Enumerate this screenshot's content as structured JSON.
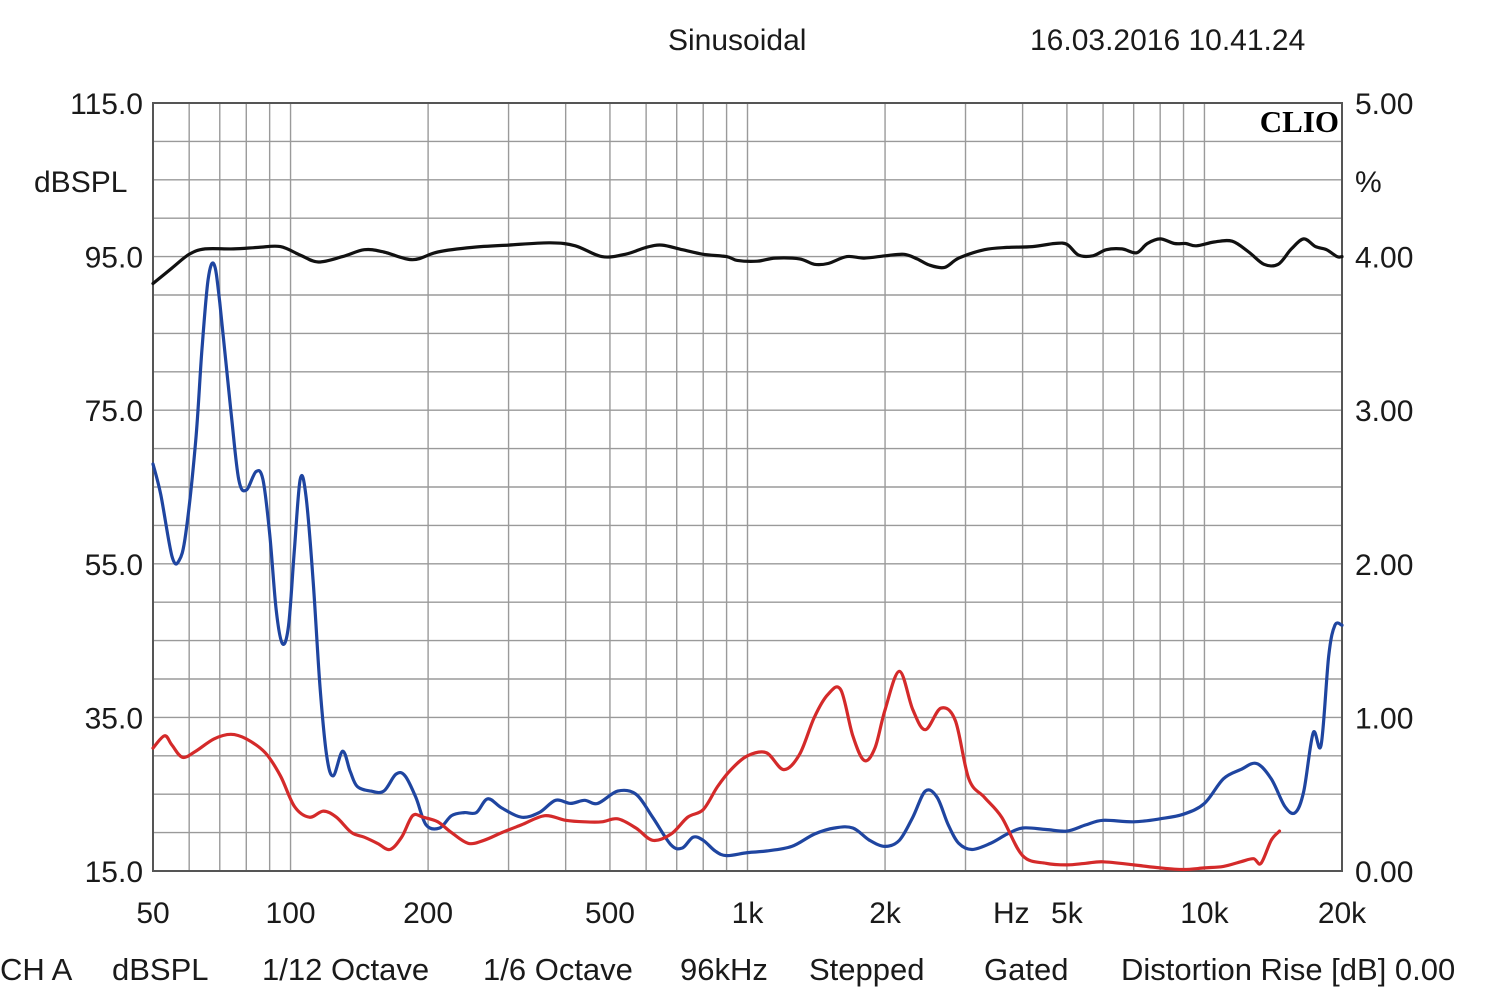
{
  "header": {
    "mode": "Sinusoidal",
    "datetime": "16.03.2016 10.41.24",
    "brand": "CLIO"
  },
  "chart_data": {
    "type": "line",
    "x_scale": "log",
    "xlim": [
      50,
      20000
    ],
    "x_tick_labels": [
      {
        "value": 50,
        "label": "50"
      },
      {
        "value": 100,
        "label": "100"
      },
      {
        "value": 200,
        "label": "200"
      },
      {
        "value": 500,
        "label": "500"
      },
      {
        "value": 1000,
        "label": "1k"
      },
      {
        "value": 2000,
        "label": "2k"
      },
      {
        "value": 5000,
        "label": "5k"
      },
      {
        "value": 10000,
        "label": "10k"
      },
      {
        "value": 20000,
        "label": "20k"
      }
    ],
    "xlabel": "Hz",
    "left_axis": {
      "label": "dBSPL",
      "ylim": [
        15,
        115
      ],
      "ticks": [
        "115.0",
        "95.0",
        "75.0",
        "55.0",
        "35.0",
        "15.0"
      ]
    },
    "right_axis": {
      "label": "%",
      "ylim": [
        0,
        5
      ],
      "ticks": [
        "5.00",
        "4.00",
        "3.00",
        "2.00",
        "1.00",
        "0.00"
      ]
    },
    "grid": true,
    "series": [
      {
        "color": "#111111",
        "axis": "left",
        "points": [
          [
            50,
            91.5
          ],
          [
            55,
            93.5
          ],
          [
            60,
            95.3
          ],
          [
            65,
            96.0
          ],
          [
            75,
            96.0
          ],
          [
            85,
            96.2
          ],
          [
            95,
            96.3
          ],
          [
            105,
            95.2
          ],
          [
            115,
            94.3
          ],
          [
            130,
            95.0
          ],
          [
            145,
            95.9
          ],
          [
            160,
            95.6
          ],
          [
            185,
            94.6
          ],
          [
            210,
            95.6
          ],
          [
            250,
            96.2
          ],
          [
            300,
            96.5
          ],
          [
            370,
            96.8
          ],
          [
            420,
            96.4
          ],
          [
            480,
            95.0
          ],
          [
            540,
            95.3
          ],
          [
            600,
            96.2
          ],
          [
            650,
            96.5
          ],
          [
            720,
            95.9
          ],
          [
            800,
            95.3
          ],
          [
            900,
            95.0
          ],
          [
            950,
            94.5
          ],
          [
            1050,
            94.4
          ],
          [
            1150,
            94.8
          ],
          [
            1300,
            94.7
          ],
          [
            1400,
            94.0
          ],
          [
            1500,
            94.1
          ],
          [
            1650,
            95.0
          ],
          [
            1800,
            94.8
          ],
          [
            2000,
            95.1
          ],
          [
            2200,
            95.3
          ],
          [
            2350,
            94.7
          ],
          [
            2500,
            93.9
          ],
          [
            2700,
            93.6
          ],
          [
            2900,
            94.8
          ],
          [
            3300,
            95.9
          ],
          [
            3700,
            96.2
          ],
          [
            4200,
            96.3
          ],
          [
            4700,
            96.7
          ],
          [
            5000,
            96.6
          ],
          [
            5300,
            95.2
          ],
          [
            5700,
            95.1
          ],
          [
            6100,
            95.9
          ],
          [
            6600,
            96.0
          ],
          [
            7100,
            95.5
          ],
          [
            7500,
            96.7
          ],
          [
            8000,
            97.3
          ],
          [
            8600,
            96.7
          ],
          [
            9100,
            96.7
          ],
          [
            9600,
            96.4
          ],
          [
            10500,
            96.9
          ],
          [
            11500,
            97.0
          ],
          [
            12500,
            95.6
          ],
          [
            13500,
            94.0
          ],
          [
            14500,
            94.0
          ],
          [
            15500,
            96.0
          ],
          [
            16500,
            97.3
          ],
          [
            17500,
            96.3
          ],
          [
            18500,
            95.9
          ],
          [
            19500,
            95.0
          ],
          [
            20000,
            95.0
          ]
        ]
      },
      {
        "color": "#1f45a0",
        "axis": "right",
        "points": [
          [
            50,
            2.65
          ],
          [
            52,
            2.45
          ],
          [
            55,
            2.05
          ],
          [
            57,
            2.02
          ],
          [
            59,
            2.2
          ],
          [
            62,
            2.8
          ],
          [
            64,
            3.4
          ],
          [
            66,
            3.85
          ],
          [
            68,
            3.95
          ],
          [
            70,
            3.7
          ],
          [
            74,
            3.0
          ],
          [
            77,
            2.55
          ],
          [
            80,
            2.48
          ],
          [
            84,
            2.6
          ],
          [
            87,
            2.55
          ],
          [
            90,
            2.2
          ],
          [
            93,
            1.7
          ],
          [
            96,
            1.48
          ],
          [
            99,
            1.6
          ],
          [
            102,
            2.1
          ],
          [
            105,
            2.55
          ],
          [
            108,
            2.45
          ],
          [
            112,
            1.9
          ],
          [
            116,
            1.2
          ],
          [
            120,
            0.75
          ],
          [
            124,
            0.62
          ],
          [
            130,
            0.78
          ],
          [
            135,
            0.65
          ],
          [
            140,
            0.55
          ],
          [
            150,
            0.52
          ],
          [
            160,
            0.52
          ],
          [
            170,
            0.63
          ],
          [
            178,
            0.62
          ],
          [
            188,
            0.48
          ],
          [
            198,
            0.3
          ],
          [
            212,
            0.28
          ],
          [
            225,
            0.36
          ],
          [
            240,
            0.38
          ],
          [
            255,
            0.38
          ],
          [
            270,
            0.47
          ],
          [
            290,
            0.41
          ],
          [
            320,
            0.35
          ],
          [
            350,
            0.38
          ],
          [
            380,
            0.46
          ],
          [
            410,
            0.44
          ],
          [
            440,
            0.46
          ],
          [
            470,
            0.44
          ],
          [
            520,
            0.52
          ],
          [
            570,
            0.5
          ],
          [
            620,
            0.35
          ],
          [
            680,
            0.17
          ],
          [
            720,
            0.15
          ],
          [
            760,
            0.22
          ],
          [
            800,
            0.2
          ],
          [
            850,
            0.13
          ],
          [
            900,
            0.1
          ],
          [
            1000,
            0.12
          ],
          [
            1100,
            0.13
          ],
          [
            1250,
            0.16
          ],
          [
            1400,
            0.24
          ],
          [
            1550,
            0.28
          ],
          [
            1700,
            0.28
          ],
          [
            1850,
            0.2
          ],
          [
            2000,
            0.16
          ],
          [
            2150,
            0.2
          ],
          [
            2300,
            0.35
          ],
          [
            2450,
            0.52
          ],
          [
            2600,
            0.48
          ],
          [
            2750,
            0.3
          ],
          [
            2900,
            0.18
          ],
          [
            3100,
            0.14
          ],
          [
            3400,
            0.18
          ],
          [
            3700,
            0.24
          ],
          [
            4000,
            0.28
          ],
          [
            4500,
            0.27
          ],
          [
            5000,
            0.26
          ],
          [
            5500,
            0.3
          ],
          [
            6000,
            0.33
          ],
          [
            7000,
            0.32
          ],
          [
            8000,
            0.34
          ],
          [
            9000,
            0.37
          ],
          [
            10000,
            0.44
          ],
          [
            11000,
            0.6
          ],
          [
            12000,
            0.66
          ],
          [
            13000,
            0.7
          ],
          [
            14000,
            0.6
          ],
          [
            15000,
            0.42
          ],
          [
            15800,
            0.38
          ],
          [
            16500,
            0.52
          ],
          [
            17300,
            0.9
          ],
          [
            18000,
            0.82
          ],
          [
            18700,
            1.4
          ],
          [
            19300,
            1.6
          ],
          [
            20000,
            1.6
          ]
        ]
      },
      {
        "color": "#d42a2a",
        "axis": "right",
        "points": [
          [
            50,
            0.8
          ],
          [
            53,
            0.88
          ],
          [
            55,
            0.82
          ],
          [
            58,
            0.74
          ],
          [
            62,
            0.78
          ],
          [
            68,
            0.86
          ],
          [
            74,
            0.89
          ],
          [
            80,
            0.86
          ],
          [
            88,
            0.77
          ],
          [
            95,
            0.62
          ],
          [
            102,
            0.42
          ],
          [
            110,
            0.35
          ],
          [
            118,
            0.39
          ],
          [
            126,
            0.35
          ],
          [
            136,
            0.25
          ],
          [
            145,
            0.22
          ],
          [
            155,
            0.18
          ],
          [
            165,
            0.14
          ],
          [
            175,
            0.22
          ],
          [
            185,
            0.36
          ],
          [
            195,
            0.35
          ],
          [
            210,
            0.32
          ],
          [
            225,
            0.25
          ],
          [
            245,
            0.18
          ],
          [
            265,
            0.2
          ],
          [
            290,
            0.25
          ],
          [
            320,
            0.3
          ],
          [
            360,
            0.36
          ],
          [
            400,
            0.33
          ],
          [
            440,
            0.32
          ],
          [
            480,
            0.32
          ],
          [
            520,
            0.34
          ],
          [
            570,
            0.28
          ],
          [
            620,
            0.2
          ],
          [
            680,
            0.24
          ],
          [
            740,
            0.35
          ],
          [
            800,
            0.4
          ],
          [
            860,
            0.55
          ],
          [
            920,
            0.66
          ],
          [
            1000,
            0.75
          ],
          [
            1100,
            0.77
          ],
          [
            1200,
            0.66
          ],
          [
            1300,
            0.76
          ],
          [
            1400,
            1.0
          ],
          [
            1500,
            1.15
          ],
          [
            1600,
            1.18
          ],
          [
            1700,
            0.88
          ],
          [
            1800,
            0.72
          ],
          [
            1900,
            0.8
          ],
          [
            2000,
            1.05
          ],
          [
            2150,
            1.3
          ],
          [
            2300,
            1.05
          ],
          [
            2450,
            0.92
          ],
          [
            2650,
            1.06
          ],
          [
            2850,
            0.98
          ],
          [
            3050,
            0.6
          ],
          [
            3300,
            0.48
          ],
          [
            3600,
            0.35
          ],
          [
            4000,
            0.1
          ],
          [
            4500,
            0.05
          ],
          [
            5000,
            0.04
          ],
          [
            5500,
            0.05
          ],
          [
            6000,
            0.06
          ],
          [
            7000,
            0.04
          ],
          [
            8000,
            0.02
          ],
          [
            9000,
            0.01
          ],
          [
            10000,
            0.02
          ],
          [
            11000,
            0.03
          ],
          [
            12000,
            0.06
          ],
          [
            12800,
            0.08
          ],
          [
            13300,
            0.05
          ],
          [
            14000,
            0.2
          ],
          [
            14600,
            0.26
          ]
        ]
      }
    ]
  },
  "footer": {
    "items": [
      "CH A",
      "dBSPL",
      "1/12 Octave",
      "1/6 Octave",
      "96kHz",
      "Stepped",
      "Gated",
      "Distortion Rise [dB] 0.00"
    ]
  }
}
